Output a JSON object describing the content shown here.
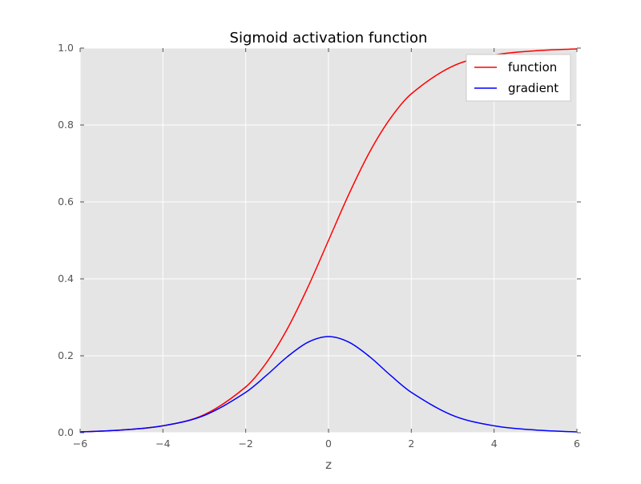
{
  "chart_data": {
    "type": "line",
    "title": "Sigmoid activation function",
    "xlabel": "z",
    "ylabel": "",
    "xlim": [
      -6,
      6
    ],
    "ylim": [
      0.0,
      1.0
    ],
    "xticks": [
      -6,
      -4,
      -2,
      0,
      2,
      4,
      6
    ],
    "xtick_labels": [
      "−6",
      "−4",
      "−2",
      "0",
      "2",
      "4",
      "6"
    ],
    "yticks": [
      0.0,
      0.2,
      0.4,
      0.6,
      0.8,
      1.0
    ],
    "ytick_labels": [
      "0.0",
      "0.2",
      "0.4",
      "0.6",
      "0.8",
      "1.0"
    ],
    "grid": true,
    "background": "#e5e5e5",
    "legend_position": "top-right",
    "x": [
      -6,
      -5,
      -4,
      -3,
      -2,
      -1.5,
      -1,
      -0.5,
      0,
      0.5,
      1,
      1.5,
      2,
      3,
      4,
      5,
      6
    ],
    "series": [
      {
        "name": "function",
        "color": "#ff0000",
        "values": [
          0.002,
          0.007,
          0.018,
          0.047,
          0.119,
          0.182,
          0.269,
          0.378,
          0.5,
          0.622,
          0.731,
          0.818,
          0.881,
          0.953,
          0.982,
          0.993,
          0.998
        ]
      },
      {
        "name": "gradient",
        "color": "#0000ff",
        "values": [
          0.002,
          0.007,
          0.018,
          0.045,
          0.105,
          0.149,
          0.197,
          0.235,
          0.25,
          0.235,
          0.197,
          0.149,
          0.105,
          0.045,
          0.018,
          0.007,
          0.002
        ]
      }
    ]
  }
}
